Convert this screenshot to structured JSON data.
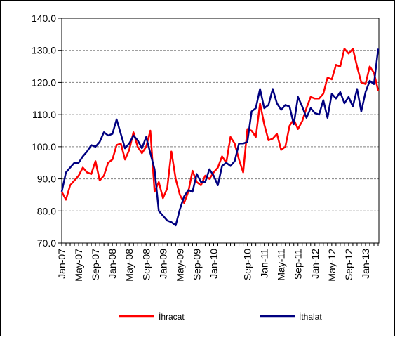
{
  "chart_data": {
    "type": "line",
    "categories": [
      "Jan-07",
      null,
      null,
      null,
      "May-07",
      null,
      null,
      null,
      "Sep-07",
      null,
      null,
      null,
      "Jan-08",
      null,
      null,
      null,
      "May-08",
      null,
      null,
      null,
      "Sep-08",
      null,
      null,
      null,
      "Jan-09",
      null,
      null,
      null,
      "May-09",
      null,
      null,
      null,
      "Sep-09",
      null,
      null,
      null,
      "Jan-10",
      null,
      null,
      null,
      null,
      null,
      null,
      null,
      "Sep-10",
      null,
      null,
      null,
      "Jan-11",
      null,
      null,
      null,
      "May-11",
      null,
      null,
      null,
      "Sep-11",
      null,
      null,
      null,
      "Jan-12",
      null,
      null,
      null,
      "May-12",
      null,
      null,
      null,
      "Sep-12",
      null,
      null,
      null,
      "Jan-13",
      null,
      null,
      null
    ],
    "series": [
      {
        "name": "İhracat",
        "color": "#ff0000",
        "values": [
          86,
          83.5,
          88,
          89.5,
          91,
          93.5,
          92,
          91.5,
          95.5,
          89.5,
          91,
          95,
          96,
          100.5,
          101,
          96,
          99,
          104.5,
          100,
          98,
          100,
          105,
          86,
          89,
          84,
          87,
          98.5,
          90,
          85,
          82.5,
          86,
          92.5,
          89,
          88,
          91,
          90,
          92,
          93.5,
          97,
          95,
          103,
          101,
          96,
          92,
          105.5,
          105,
          103,
          113.5,
          107,
          102,
          102.5,
          104,
          99,
          100,
          106.5,
          108.5,
          105.5,
          108,
          112,
          115.5,
          115,
          115,
          116.5,
          121.5,
          121,
          125.5,
          125,
          130.5,
          129,
          130.5,
          125,
          120,
          119.5,
          125,
          123,
          117.5
        ]
      },
      {
        "name": "İthalat",
        "color": "#000080",
        "values": [
          86,
          92,
          93.5,
          95,
          95,
          97,
          98.5,
          100.5,
          100,
          101.5,
          104.5,
          103.5,
          104,
          108.5,
          104,
          99.5,
          101,
          103.5,
          102,
          99.5,
          103,
          98,
          93,
          80,
          78.5,
          77,
          76.5,
          75.5,
          80.5,
          84.5,
          86.5,
          86,
          91.5,
          89,
          89,
          93,
          91,
          88,
          94,
          95,
          94,
          95.5,
          101,
          101,
          101.5,
          111,
          112,
          118,
          112,
          113,
          118,
          113.5,
          111.5,
          113,
          112.5,
          107,
          115.5,
          112.5,
          109,
          112,
          110.5,
          110,
          114.5,
          109,
          116.5,
          115,
          117,
          113.5,
          115.5,
          112.5,
          118,
          111,
          117,
          120.5,
          119.5,
          130.5
        ]
      }
    ],
    "ylim": [
      70,
      140
    ],
    "yticks": [
      {
        "value": 70,
        "label": "70.0"
      },
      {
        "value": 80,
        "label": "80.0"
      },
      {
        "value": 90,
        "label": "90.0"
      },
      {
        "value": 100,
        "label": "100.0"
      },
      {
        "value": 110,
        "label": "110.0"
      },
      {
        "value": 120,
        "label": "120.0"
      },
      {
        "value": 130,
        "label": "130.0"
      },
      {
        "value": 140,
        "label": "140.0"
      }
    ],
    "grid": true,
    "legend": "bottom"
  }
}
